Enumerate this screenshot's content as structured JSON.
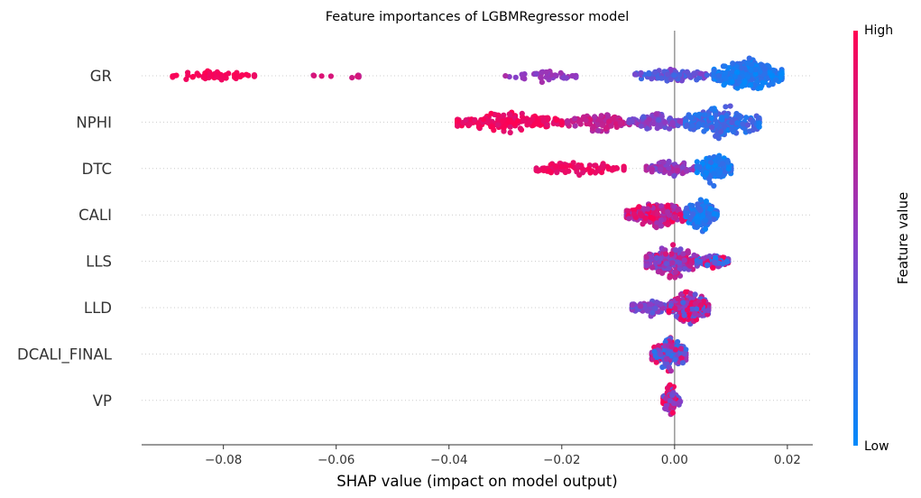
{
  "chart_data": {
    "type": "scatter",
    "subtype": "shap-beeswarm",
    "title": "Feature importances of LGBMRegressor model",
    "xlabel": "SHAP value (impact on model output)",
    "xticks": [
      "−0.08",
      "−0.06",
      "−0.04",
      "−0.02",
      "0.00",
      "0.02"
    ],
    "xtick_values": [
      -0.08,
      -0.06,
      -0.04,
      -0.02,
      0.0,
      0.02
    ],
    "xlim": [
      -0.0945,
      0.0245
    ],
    "features": [
      "GR",
      "NPHI",
      "DTC",
      "CALI",
      "LLS",
      "LLD",
      "DCALI_FINAL",
      "VP"
    ],
    "colorbar": {
      "title": "Feature value",
      "high": "High",
      "low": "Low",
      "high_color": "#ff0052",
      "mid_color": "#8b3dc6",
      "low_color": "#008afb"
    },
    "grid": false,
    "zero_line": 0.0,
    "series": [
      {
        "name": "GR",
        "clusters": [
          {
            "min": -0.089,
            "max": -0.0745,
            "n": 48,
            "spread": 0.35,
            "fv": [
              0.92,
              1.0
            ]
          },
          {
            "min": -0.0655,
            "max": -0.052,
            "n": 9,
            "spread": 0.15,
            "fv": [
              0.72,
              0.85
            ]
          },
          {
            "min": -0.03,
            "max": -0.0175,
            "n": 45,
            "spread": 0.35,
            "fv": [
              0.45,
              0.65
            ]
          },
          {
            "min": -0.007,
            "max": 0.007,
            "n": 90,
            "spread": 0.45,
            "fv": [
              0.2,
              0.5
            ]
          },
          {
            "min": 0.007,
            "max": 0.019,
            "n": 290,
            "spread": 1.0,
            "fv": [
              0.0,
              0.2
            ]
          }
        ]
      },
      {
        "name": "NPHI",
        "clusters": [
          {
            "min": -0.0385,
            "max": -0.02,
            "n": 170,
            "spread": 0.6,
            "fv": [
              0.85,
              1.0
            ]
          },
          {
            "min": -0.019,
            "max": -0.008,
            "n": 110,
            "spread": 0.6,
            "fv": [
              0.6,
              0.85
            ]
          },
          {
            "min": -0.008,
            "max": 0.002,
            "n": 110,
            "spread": 0.5,
            "fv": [
              0.3,
              0.6
            ]
          },
          {
            "min": 0.002,
            "max": 0.015,
            "n": 210,
            "spread": 1.0,
            "fv": [
              0.05,
              0.35
            ]
          }
        ]
      },
      {
        "name": "DTC",
        "clusters": [
          {
            "min": -0.0245,
            "max": -0.009,
            "n": 90,
            "spread": 0.45,
            "fv": [
              0.85,
              1.0
            ]
          },
          {
            "min": -0.005,
            "max": 0.004,
            "n": 90,
            "spread": 0.45,
            "fv": [
              0.4,
              0.7
            ]
          },
          {
            "min": 0.004,
            "max": 0.01,
            "n": 140,
            "spread": 1.0,
            "fv": [
              0.0,
              0.2
            ]
          }
        ]
      },
      {
        "name": "CALI",
        "clusters": [
          {
            "min": -0.0085,
            "max": 0.002,
            "n": 200,
            "spread": 0.85,
            "fv": [
              0.55,
              1.0
            ]
          },
          {
            "min": 0.002,
            "max": 0.0075,
            "n": 120,
            "spread": 1.0,
            "fv": [
              0.0,
              0.25
            ]
          }
        ]
      },
      {
        "name": "LLS",
        "clusters": [
          {
            "min": -0.005,
            "max": 0.004,
            "n": 230,
            "spread": 1.0,
            "fv": [
              0.35,
              0.9
            ]
          },
          {
            "min": 0.004,
            "max": 0.0095,
            "n": 95,
            "spread": 0.45,
            "fv": [
              0.05,
              1.0
            ]
          }
        ]
      },
      {
        "name": "LLD",
        "clusters": [
          {
            "min": -0.0075,
            "max": -0.001,
            "n": 90,
            "spread": 0.55,
            "fv": [
              0.3,
              0.6
            ]
          },
          {
            "min": -0.001,
            "max": 0.006,
            "n": 250,
            "spread": 1.0,
            "fv": [
              0.2,
              1.0
            ]
          }
        ]
      },
      {
        "name": "DCALI_FINAL",
        "clusters": [
          {
            "min": -0.004,
            "max": 0.002,
            "n": 160,
            "spread": 1.0,
            "fv": [
              0.1,
              1.0
            ]
          }
        ]
      },
      {
        "name": "VP",
        "clusters": [
          {
            "min": -0.002,
            "max": 0.001,
            "n": 95,
            "spread": 1.0,
            "fv": [
              0.3,
              1.0
            ]
          }
        ]
      }
    ]
  }
}
